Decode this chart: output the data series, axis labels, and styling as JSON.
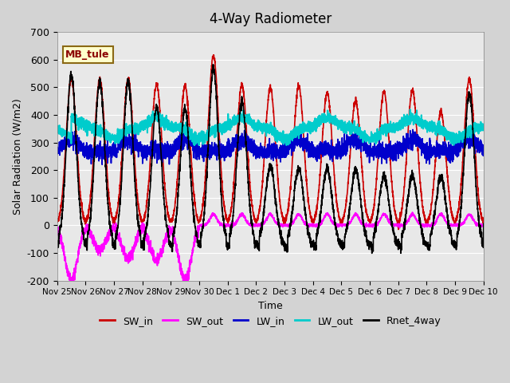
{
  "title": "4-Way Radiometer",
  "xlabel": "Time",
  "ylabel": "Solar Radiation (W/m2)",
  "ylim": [
    -200,
    700
  ],
  "xlim": [
    0,
    15
  ],
  "tick_labels": [
    "Nov 25",
    "Nov 26",
    "Nov 27",
    "Nov 28",
    "Nov 29",
    "Nov 30",
    "Dec 1",
    "Dec 2",
    "Dec 3",
    "Dec 4",
    "Dec 5",
    "Dec 6",
    "Dec 7",
    "Dec 8",
    "Dec 9",
    "Dec 10"
  ],
  "station_label": "MB_tule",
  "background_color": "#e8e8e8",
  "plot_bg_color": "#f0f0f0",
  "series": {
    "SW_in": {
      "color": "#cc0000",
      "lw": 1.2
    },
    "SW_out": {
      "color": "#ff00ff",
      "lw": 1.2
    },
    "LW_in": {
      "color": "#0000cc",
      "lw": 1.2
    },
    "LW_out": {
      "color": "#00cccc",
      "lw": 1.5
    },
    "Rnet_4way": {
      "color": "#000000",
      "lw": 1.2
    }
  },
  "legend_colors": {
    "SW_in": "#cc0000",
    "SW_out": "#ff00ff",
    "LW_in": "#0000cc",
    "LW_out": "#00cccc",
    "Rnet_4way": "#000000"
  }
}
